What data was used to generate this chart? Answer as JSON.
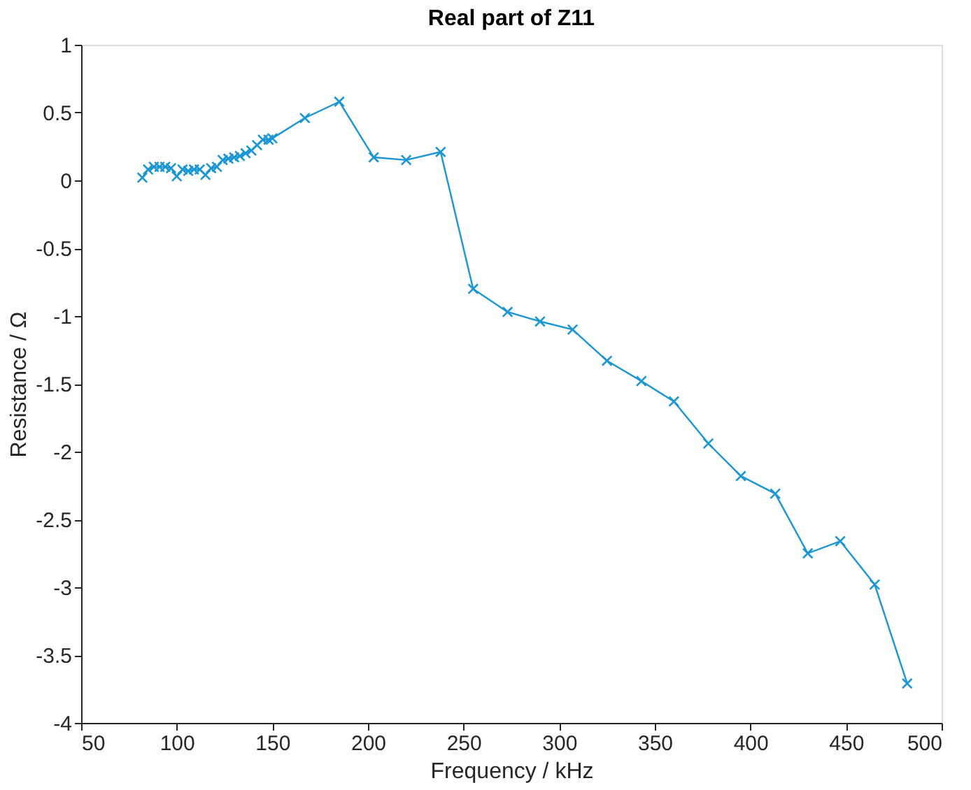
{
  "chart_data": {
    "type": "line",
    "title": "Real part of Z11",
    "xlabel": "Frequency / kHz",
    "ylabel": "Resistance / Ω",
    "x": [
      82,
      85,
      88,
      91,
      94,
      97,
      100,
      103,
      106,
      109,
      112,
      115,
      118,
      121,
      124,
      127,
      130,
      133,
      136,
      139,
      142,
      145,
      148,
      150,
      167,
      185,
      203,
      220,
      238,
      255,
      273,
      290,
      307,
      325,
      343,
      360,
      378,
      395,
      413,
      430,
      447,
      465,
      482
    ],
    "series": [
      {
        "color": "#1a96d4",
        "values": [
          0.02,
          0.08,
          0.1,
          0.1,
          0.1,
          0.09,
          0.03,
          0.08,
          0.07,
          0.08,
          0.08,
          0.04,
          0.09,
          0.1,
          0.15,
          0.16,
          0.17,
          0.18,
          0.2,
          0.22,
          0.26,
          0.3,
          0.3,
          0.31,
          0.46,
          0.58,
          0.17,
          0.15,
          0.21,
          -0.8,
          -0.97,
          -1.04,
          -1.1,
          -1.33,
          -1.48,
          -1.63,
          -1.94,
          -2.18,
          -2.31,
          -2.75,
          -2.66,
          -2.98,
          -3.71
        ]
      }
    ],
    "xlim": [
      50,
      500
    ],
    "xticks": [
      50,
      100,
      150,
      200,
      250,
      300,
      350,
      400,
      450,
      500
    ],
    "ylim": [
      -4,
      1
    ],
    "yticks": [
      {
        "value": -4,
        "label": "-4"
      },
      {
        "value": -3.5,
        "label": "-3.5"
      },
      {
        "value": -3,
        "label": "-3"
      },
      {
        "value": -2.5,
        "label": "-2.5"
      },
      {
        "value": -2,
        "label": "-2"
      },
      {
        "value": -1.5,
        "label": "-1.5"
      },
      {
        "value": -1,
        "label": "-1"
      },
      {
        "value": -0.5,
        "label": "-0.5"
      },
      {
        "value": 0,
        "label": "0"
      },
      {
        "value": 0.5,
        "label": "0.5"
      },
      {
        "value": 1,
        "label": "1"
      }
    ],
    "marker": "cross",
    "line_style": "solid",
    "grid": false
  }
}
